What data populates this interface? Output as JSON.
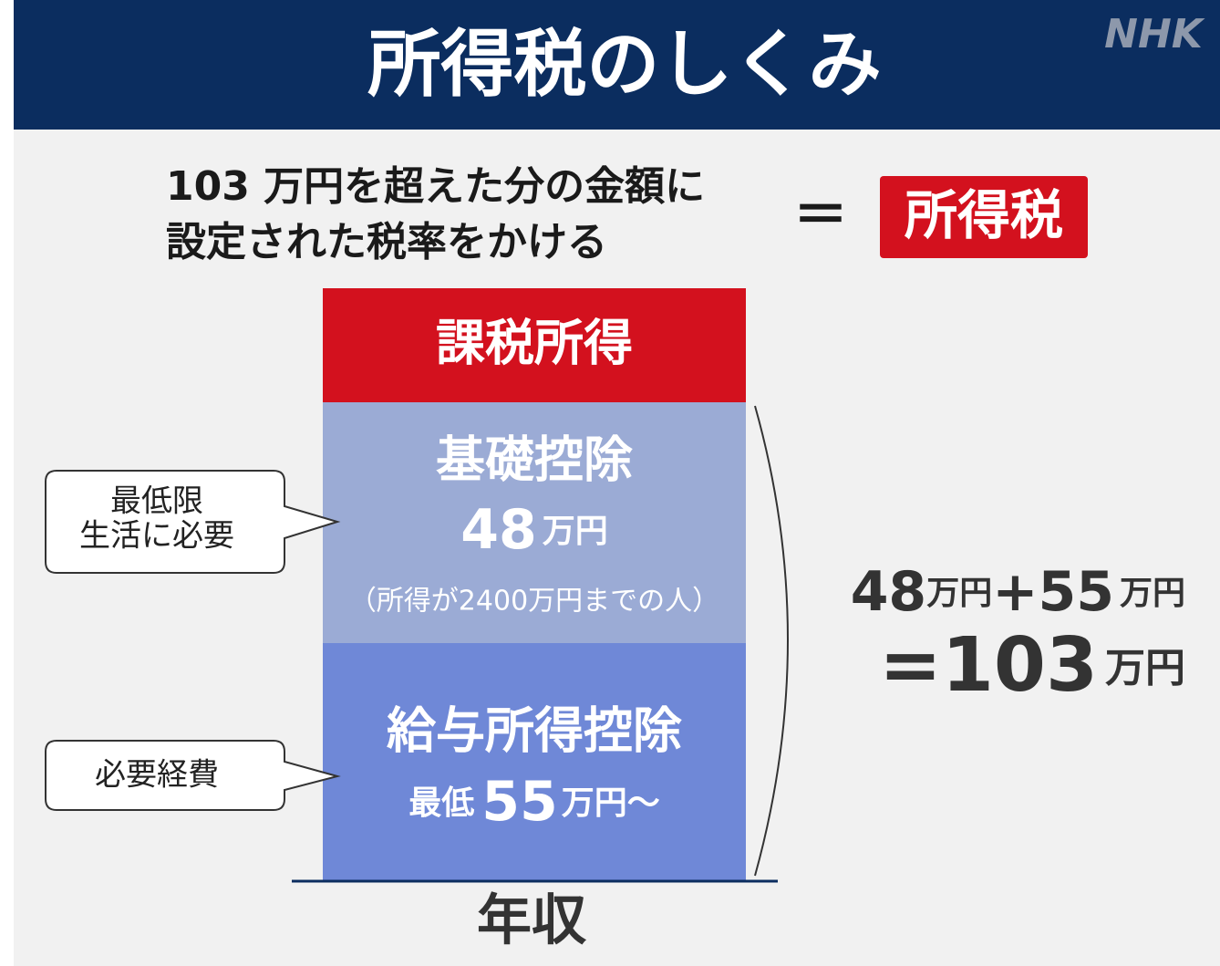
{
  "header": {
    "title": "所得税のしくみ",
    "logo": "NHK"
  },
  "formula": {
    "lines": [
      "103 万円を超えた分の金額に",
      "設定された税率をかける"
    ],
    "equals": "＝",
    "result": "所得税"
  },
  "blocks": {
    "taxable": {
      "label": "課税所得"
    },
    "basic": {
      "label": "基礎控除",
      "amount": "48",
      "unit": "万円",
      "note": "（所得が2400万円までの人）"
    },
    "salary": {
      "label": "給与所得控除",
      "prefix": "最低",
      "amount": "55",
      "unit": "万円～"
    }
  },
  "callouts": [
    {
      "lines": [
        "最低限",
        "生活に必要"
      ]
    },
    {
      "lines": [
        "必要経費"
      ]
    }
  ],
  "sum": {
    "line1": [
      "48",
      "万円",
      "+55",
      "万円"
    ],
    "line2": [
      "=103",
      "万円"
    ]
  },
  "base": "年収"
}
